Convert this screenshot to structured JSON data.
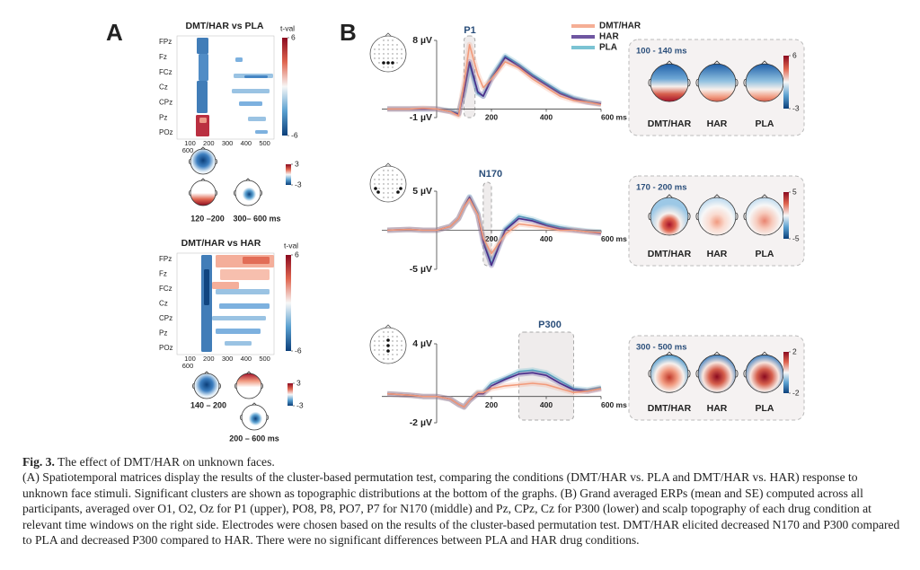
{
  "panel_a": {
    "label": "A",
    "matrices": [
      {
        "title": "DMT/HAR vs PLA",
        "cbar_label": "t-val",
        "cbar_ticks": [
          6,
          -6
        ],
        "channels": [
          "FPz",
          "Fz",
          "FCz",
          "Cz",
          "CPz",
          "Pz",
          "POz"
        ],
        "xticks": [
          100,
          200,
          300,
          400,
          500,
          600
        ],
        "topo_cbar_ticks": [
          3,
          -3
        ],
        "topo_labels": [
          "120 –200",
          "300– 600 ms"
        ]
      },
      {
        "title": "DMT/HAR vs HAR",
        "cbar_label": "t-val",
        "cbar_ticks": [
          6,
          -6
        ],
        "channels": [
          "FPz",
          "Fz",
          "FCz",
          "Cz",
          "CPz",
          "Pz",
          "POz"
        ],
        "xticks": [
          100,
          200,
          300,
          400,
          500,
          600
        ],
        "topo_cbar_ticks": [
          3,
          -3
        ],
        "topo_labels": [
          "140 – 200",
          "200 – 600 ms"
        ]
      }
    ]
  },
  "panel_b": {
    "label": "B"
  },
  "chart_data": [
    {
      "type": "line",
      "component": "P1",
      "x": [
        -180,
        -100,
        -50,
        0,
        50,
        80,
        100,
        120,
        150,
        170,
        200,
        250,
        300,
        350,
        400,
        450,
        500,
        550,
        600
      ],
      "series": [
        {
          "name": "DMT/HAR",
          "color": "#f29a7a",
          "values": [
            0,
            0,
            0.1,
            0,
            -0.3,
            -0.8,
            3,
            7.5,
            4,
            2.5,
            3.5,
            5.5,
            4.8,
            3.5,
            2.5,
            1.5,
            1,
            0.8,
            0.5
          ]
        },
        {
          "name": "HAR",
          "color": "#4b2c8a",
          "values": [
            0,
            0,
            0,
            0,
            -0.3,
            -0.6,
            2,
            5.5,
            2,
            1.5,
            3.5,
            6,
            5,
            3.8,
            2.8,
            1.8,
            1.2,
            0.8,
            0.6
          ]
        },
        {
          "name": "PLA",
          "color": "#5ab4c8",
          "values": [
            0,
            0,
            0,
            0,
            -0.2,
            -0.5,
            2,
            5.2,
            1.8,
            1.5,
            3.8,
            6.2,
            5.2,
            4,
            3,
            2,
            1.3,
            0.9,
            0.6
          ]
        }
      ],
      "xlim": [
        -200,
        600
      ],
      "ylim": [
        -1,
        8
      ],
      "xticks": [
        200,
        400,
        {
          "value": 600,
          "label": "600 ms"
        }
      ],
      "yticks": [
        {
          "value": 8,
          "label": "8 µV"
        },
        {
          "value": -1,
          "label": "-1 µV"
        }
      ],
      "window": [
        100,
        140
      ],
      "topo": {
        "title": "100 - 140 ms",
        "cbar_ticks": [
          6,
          -3
        ]
      }
    },
    {
      "type": "line",
      "component": "N170",
      "x": [
        -180,
        -100,
        -50,
        0,
        50,
        80,
        100,
        120,
        150,
        170,
        200,
        250,
        300,
        350,
        400,
        450,
        500,
        550,
        600
      ],
      "series": [
        {
          "name": "DMT/HAR",
          "color": "#f29a7a",
          "values": [
            0,
            0.1,
            0,
            0,
            0.5,
            1.5,
            3,
            4,
            2,
            -1,
            -3,
            -0.5,
            0.8,
            0.6,
            0.3,
            0,
            0,
            -0.2,
            -0.3
          ]
        },
        {
          "name": "HAR",
          "color": "#4b2c8a",
          "values": [
            0,
            0.1,
            0,
            0,
            0.5,
            1.5,
            3,
            4.2,
            2,
            -1.5,
            -4.5,
            0,
            1.5,
            1.2,
            0.6,
            0.2,
            0,
            -0.2,
            -0.4
          ]
        },
        {
          "name": "PLA",
          "color": "#5ab4c8",
          "values": [
            0,
            0.1,
            0,
            0,
            0.5,
            1.5,
            3,
            4.3,
            2.2,
            -1.2,
            -4.3,
            0.2,
            1.8,
            1.4,
            0.8,
            0.4,
            0.1,
            -0.1,
            -0.2
          ]
        }
      ],
      "xlim": [
        -200,
        600
      ],
      "ylim": [
        -5,
        5
      ],
      "xticks": [
        200,
        400,
        {
          "value": 600,
          "label": "600 ms"
        }
      ],
      "yticks": [
        {
          "value": 5,
          "label": "5 µV"
        },
        {
          "value": -5,
          "label": "-5 µV"
        }
      ],
      "window": [
        170,
        200
      ],
      "topo": {
        "title": "170 - 200 ms",
        "cbar_ticks": [
          5,
          -5
        ]
      }
    },
    {
      "type": "line",
      "component": "P300",
      "x": [
        -180,
        -100,
        -50,
        0,
        50,
        80,
        100,
        120,
        150,
        170,
        200,
        250,
        300,
        350,
        400,
        450,
        500,
        550,
        600
      ],
      "series": [
        {
          "name": "DMT/HAR",
          "color": "#f29a7a",
          "values": [
            0.2,
            0.1,
            0,
            0,
            -0.2,
            -0.6,
            -0.8,
            -0.3,
            0.3,
            0.3,
            0.6,
            0.8,
            0.9,
            1,
            0.9,
            0.6,
            0.3,
            0.4,
            0.6
          ]
        },
        {
          "name": "HAR",
          "color": "#4b2c8a",
          "values": [
            0.2,
            0.1,
            0,
            0,
            -0.2,
            -0.6,
            -0.8,
            -0.3,
            0.2,
            0.2,
            0.8,
            1.3,
            1.7,
            1.8,
            1.6,
            1,
            0.5,
            0.4,
            0.6
          ]
        },
        {
          "name": "PLA",
          "color": "#5ab4c8",
          "values": [
            0.2,
            0.1,
            0,
            0,
            -0.2,
            -0.6,
            -0.8,
            -0.3,
            0.3,
            0.3,
            1,
            1.4,
            1.9,
            2,
            1.8,
            1.2,
            0.6,
            0.5,
            0.7
          ]
        }
      ],
      "xlim": [
        -200,
        600
      ],
      "ylim": [
        -2,
        4
      ],
      "xticks": [
        200,
        400,
        {
          "value": 600,
          "label": "600 ms"
        }
      ],
      "yticks": [
        {
          "value": 4,
          "label": "4 µV"
        },
        {
          "value": -2,
          "label": "-2 µV"
        }
      ],
      "window": [
        300,
        500
      ],
      "topo": {
        "title": "300 - 500 ms",
        "cbar_ticks": [
          2,
          -2
        ]
      }
    }
  ],
  "caption": {
    "label": "Fig. 3.",
    "title": "The effect of DMT/HAR on unknown faces.",
    "body": "(A) Spatiotemporal matrices display the results of the cluster-based permutation test, comparing the conditions (DMT/HAR vs. PLA and DMT/HAR vs. HAR) response to unknown face stimuli. Significant clusters are shown as topographic distributions at the bottom of the graphs. (B) Grand averaged ERPs (mean and SE) computed across all participants, averaged over O1, O2, Oz for P1 (upper), PO8, P8, PO7, P7 for N170 (middle) and Pz, CPz, Cz for P300 (lower) and scalp topography of each drug condition at relevant time windows on the right side. Electrodes were chosen based on the results of the cluster-based permutation test. DMT/HAR elicited decreased N170 and P300 compared to PLA and decreased P300 compared to HAR. There were no significant differences between PLA and HAR drug conditions."
  }
}
